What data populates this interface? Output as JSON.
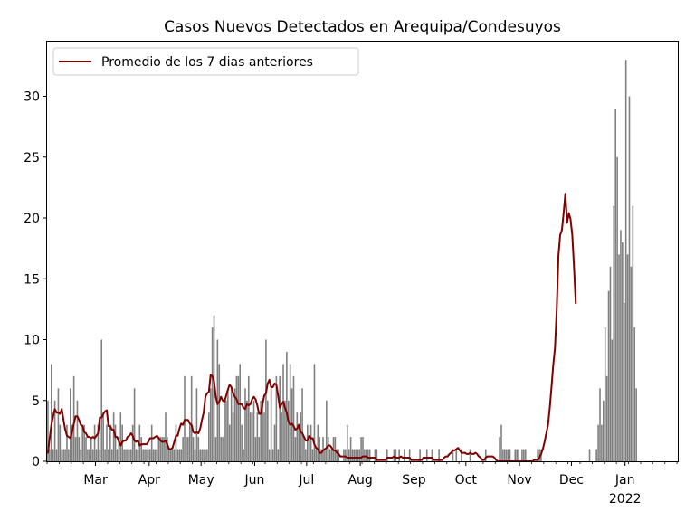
{
  "chart_data": {
    "type": "bar",
    "title": "Casos Nuevos Detectados en Arequipa/Condesuyos",
    "xlabel": "",
    "ylabel": "",
    "x_start": "2021-02-01",
    "x_end": "2022-01-31",
    "ylim": [
      0,
      34.5
    ],
    "y_ticks": [
      0,
      5,
      10,
      15,
      20,
      25,
      30
    ],
    "x_ticks": [
      {
        "date": "2021-03-01",
        "label": "Mar",
        "sublabel": ""
      },
      {
        "date": "2021-04-01",
        "label": "Apr",
        "sublabel": ""
      },
      {
        "date": "2021-05-01",
        "label": "May",
        "sublabel": ""
      },
      {
        "date": "2021-06-01",
        "label": "Jun",
        "sublabel": ""
      },
      {
        "date": "2021-07-01",
        "label": "Jul",
        "sublabel": ""
      },
      {
        "date": "2021-08-01",
        "label": "Aug",
        "sublabel": ""
      },
      {
        "date": "2021-09-01",
        "label": "Sep",
        "sublabel": ""
      },
      {
        "date": "2021-10-01",
        "label": "Oct",
        "sublabel": ""
      },
      {
        "date": "2021-11-01",
        "label": "Nov",
        "sublabel": ""
      },
      {
        "date": "2021-12-01",
        "label": "Dec",
        "sublabel": ""
      },
      {
        "date": "2022-01-01",
        "label": "Jan",
        "sublabel": "2022"
      }
    ],
    "grid": false,
    "legend_position": "top-left",
    "series": [
      {
        "name": "",
        "kind": "bar",
        "color": "#808080",
        "values": [
          5,
          1,
          8,
          1,
          5,
          1,
          6,
          3,
          1,
          1,
          1,
          3,
          1,
          6,
          3,
          7,
          2,
          5,
          2,
          1,
          3,
          3,
          2,
          1,
          1,
          2,
          1,
          3,
          1,
          3,
          1,
          10,
          4,
          1,
          3,
          1,
          3,
          1,
          4,
          3,
          1,
          2,
          4,
          3,
          1,
          1,
          1,
          1,
          1,
          3,
          6,
          1,
          1,
          3,
          2,
          1,
          1,
          1,
          1,
          1,
          3,
          1,
          1,
          1,
          2,
          2,
          2,
          2,
          4,
          2,
          1,
          1,
          1,
          1,
          3,
          1,
          1,
          1,
          2,
          7,
          2,
          2,
          3,
          7,
          2,
          1,
          6,
          2,
          1,
          1,
          1,
          1,
          1,
          4,
          6,
          11,
          12,
          2,
          10,
          8,
          2,
          2,
          5,
          5,
          6,
          3,
          6,
          4,
          6,
          7,
          7,
          8,
          3,
          1,
          6,
          5,
          7,
          4,
          4,
          5,
          2,
          4,
          2,
          5,
          5,
          4,
          10,
          5,
          1,
          6,
          1,
          3,
          7,
          1,
          7,
          4,
          8,
          5,
          9,
          5,
          8,
          6,
          7,
          2,
          4,
          3,
          4,
          6,
          2,
          1,
          3,
          2,
          3,
          1,
          8,
          1,
          3,
          2,
          1,
          2,
          1,
          5,
          2,
          1,
          1,
          2,
          2,
          1,
          1,
          0,
          0,
          1,
          1,
          3,
          1,
          2,
          1,
          1,
          1,
          1,
          1,
          2,
          2,
          1,
          1,
          1,
          1,
          0,
          0,
          1,
          1,
          0,
          0,
          0,
          0,
          0,
          1,
          0,
          0,
          0,
          1,
          1,
          0,
          1,
          0,
          0,
          1,
          0,
          0,
          1,
          0,
          0,
          0,
          0,
          0,
          1,
          0,
          0,
          0,
          1,
          0,
          0,
          1,
          0,
          0,
          0,
          1,
          0,
          0,
          0,
          0,
          0,
          0,
          0,
          1,
          0,
          1,
          0,
          0,
          1,
          0,
          0,
          0,
          0,
          1,
          0,
          0,
          0,
          0,
          0,
          0,
          0,
          0,
          1,
          0,
          0,
          0,
          0,
          0,
          0,
          0,
          2,
          3,
          1,
          1,
          1,
          1,
          1,
          0,
          0,
          1,
          1,
          1,
          0,
          1,
          1,
          1,
          0,
          0,
          0,
          0,
          0,
          0,
          1,
          1,
          1,
          0,
          0,
          0,
          0,
          0,
          0,
          0,
          0,
          0,
          0,
          0,
          0,
          0,
          0,
          0,
          0,
          0,
          0,
          0,
          0,
          0,
          0,
          0,
          0,
          0,
          0,
          0,
          1,
          0,
          0,
          0,
          1,
          3,
          6,
          3,
          5,
          11,
          7,
          14,
          16,
          10,
          21,
          29,
          25,
          17,
          19,
          18,
          13,
          33,
          17,
          30,
          16,
          21,
          11,
          6
        ]
      },
      {
        "name": "Promedio de los 7 dias anteriores",
        "kind": "line",
        "color": "#800000",
        "values": [
          0.7,
          1.9,
          3.0,
          3.7,
          4.3,
          4.0,
          4.0,
          3.9,
          4.3,
          3.4,
          2.6,
          2.1,
          2.0,
          1.9,
          2.4,
          3.1,
          3.7,
          3.7,
          3.4,
          3.0,
          2.9,
          2.4,
          2.3,
          2.0,
          2.0,
          1.9,
          2.0,
          1.9,
          2.1,
          2.3,
          3.6,
          3.6,
          3.9,
          4.1,
          4.2,
          2.9,
          2.9,
          2.6,
          2.6,
          2.0,
          2.0,
          1.6,
          1.3,
          1.6,
          1.7,
          1.7,
          2.0,
          2.1,
          2.3,
          2.1,
          1.7,
          1.6,
          1.7,
          1.3,
          1.4,
          1.4,
          1.4,
          1.4,
          1.6,
          1.9,
          1.9,
          1.9,
          2.0,
          2.1,
          1.9,
          1.7,
          1.6,
          1.6,
          1.7,
          1.4,
          1.0,
          1.0,
          1.1,
          1.6,
          2.1,
          2.1,
          2.7,
          3.1,
          3.0,
          3.4,
          3.4,
          3.4,
          3.1,
          3.0,
          2.4,
          2.3,
          2.4,
          2.3,
          2.7,
          3.4,
          4.0,
          5.3,
          5.6,
          5.7,
          7.1,
          7.0,
          6.6,
          5.3,
          4.7,
          4.9,
          5.3,
          5.0,
          4.9,
          5.4,
          5.9,
          6.3,
          6.1,
          5.6,
          5.3,
          5.1,
          4.7,
          4.7,
          4.7,
          4.4,
          4.3,
          4.7,
          4.6,
          4.7,
          5.1,
          5.3,
          5.1,
          4.6,
          3.9,
          3.9,
          4.7,
          5.4,
          5.6,
          6.4,
          6.7,
          6.1,
          6.1,
          6.4,
          6.3,
          5.4,
          4.4,
          4.7,
          4.9,
          4.4,
          4.0,
          3.3,
          3.0,
          3.1,
          2.9,
          2.6,
          2.7,
          3.0,
          2.4,
          2.3,
          2.0,
          1.7,
          1.7,
          2.1,
          1.9,
          1.9,
          1.4,
          1.1,
          1.0,
          0.7,
          0.7,
          0.9,
          1.0,
          1.1,
          1.3,
          1.3,
          1.1,
          0.9,
          0.9,
          0.7,
          0.6,
          0.4,
          0.4,
          0.4,
          0.4,
          0.3,
          0.3,
          0.3,
          0.3,
          0.3,
          0.3,
          0.3,
          0.3,
          0.3,
          0.4,
          0.4,
          0.4,
          0.3,
          0.3,
          0.3,
          0.3,
          0.3,
          0.1,
          0.1,
          0.1,
          0.1,
          0.1,
          0.1,
          0.3,
          0.3,
          0.3,
          0.3,
          0.4,
          0.3,
          0.3,
          0.3,
          0.4,
          0.3,
          0.3,
          0.3,
          0.3,
          0.3,
          0.1,
          0.1,
          0.1,
          0.1,
          0.1,
          0.1,
          0.1,
          0.3,
          0.3,
          0.3,
          0.3,
          0.3,
          0.3,
          0.1,
          0.1,
          0.1,
          0.1,
          0.1,
          0.1,
          0.3,
          0.4,
          0.4,
          0.6,
          0.7,
          0.9,
          0.9,
          1.0,
          1.1,
          0.9,
          0.7,
          0.7,
          0.7,
          0.6,
          0.6,
          0.7,
          0.6,
          0.6,
          0.7,
          0.6,
          0.4,
          0.3,
          0.1,
          0.1,
          0.3,
          0.4,
          0.4,
          0.4,
          0.4,
          0.3,
          0.1,
          0.0,
          0.0,
          0.0,
          0.0,
          0.0,
          0.0,
          0.0,
          0.0,
          0.0,
          0.0,
          0.0,
          0.0,
          0.0,
          0.0,
          0.0,
          0.0,
          0.0,
          0.0,
          0.0,
          0.0,
          0.0,
          0.1,
          0.1,
          0.1,
          0.3,
          0.6,
          1.0,
          1.6,
          2.3,
          3.0,
          4.4,
          6.1,
          7.9,
          9.3,
          12.4,
          16.9,
          18.6,
          19.0,
          20.4,
          22.0,
          19.6,
          20.4,
          19.9,
          18.6,
          16.0,
          13.0
        ]
      }
    ]
  }
}
